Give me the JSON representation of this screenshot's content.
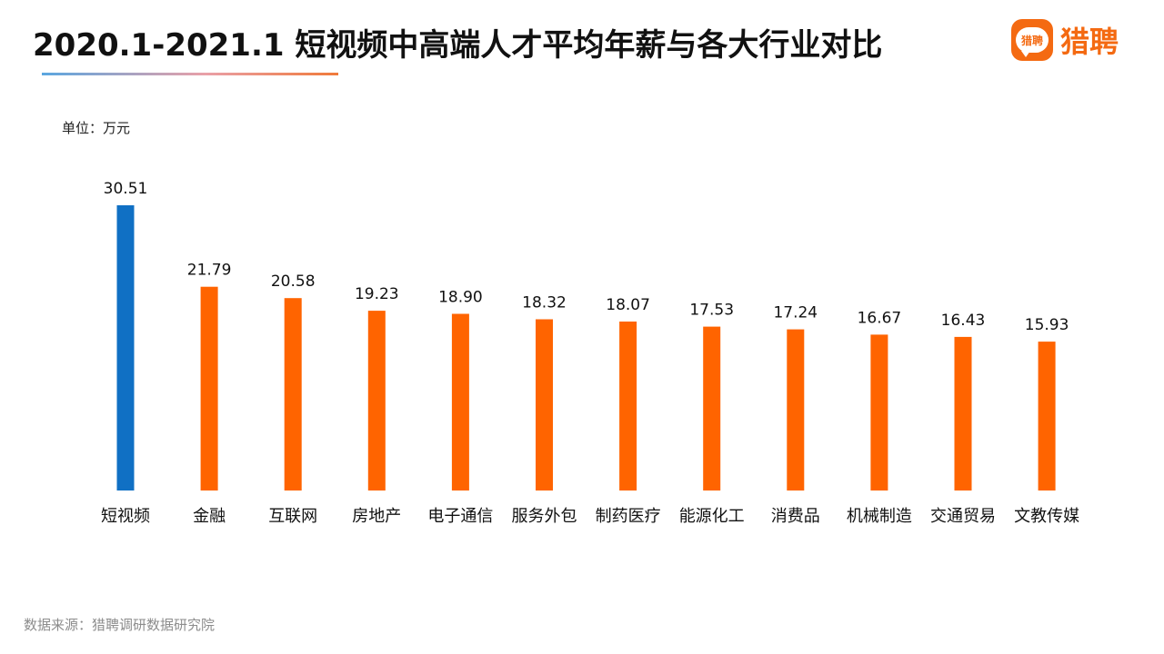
{
  "header": {
    "title": "2020.1-2021.1 短视频中高端人才平均年薪与各大行业对比",
    "logo_text": "猎聘",
    "logo_mark_text": "猎聘"
  },
  "unit_label": "单位：万元",
  "source": "数据来源：猎聘调研数据研究院",
  "colors": {
    "highlight": "#1070c4",
    "default": "#ff6400",
    "brand": "#f46a12"
  },
  "chart_data": {
    "type": "bar",
    "categories": [
      "短视频",
      "金融",
      "互联网",
      "房地产",
      "电子通信",
      "服务外包",
      "制药医疗",
      "能源化工",
      "消费品",
      "机械制造",
      "交通贸易",
      "文教传媒"
    ],
    "values": [
      30.51,
      21.79,
      20.58,
      19.23,
      18.9,
      18.32,
      18.07,
      17.53,
      17.24,
      16.67,
      16.43,
      15.93
    ],
    "data_labels": [
      "30.51",
      "21.79",
      "20.58",
      "19.23",
      "18.90",
      "18.32",
      "18.07",
      "17.53",
      "17.24",
      "16.67",
      "16.43",
      "15.93"
    ],
    "highlight_index": 0,
    "ylim": [
      0,
      30.51
    ],
    "grid": false,
    "legend": "none"
  }
}
